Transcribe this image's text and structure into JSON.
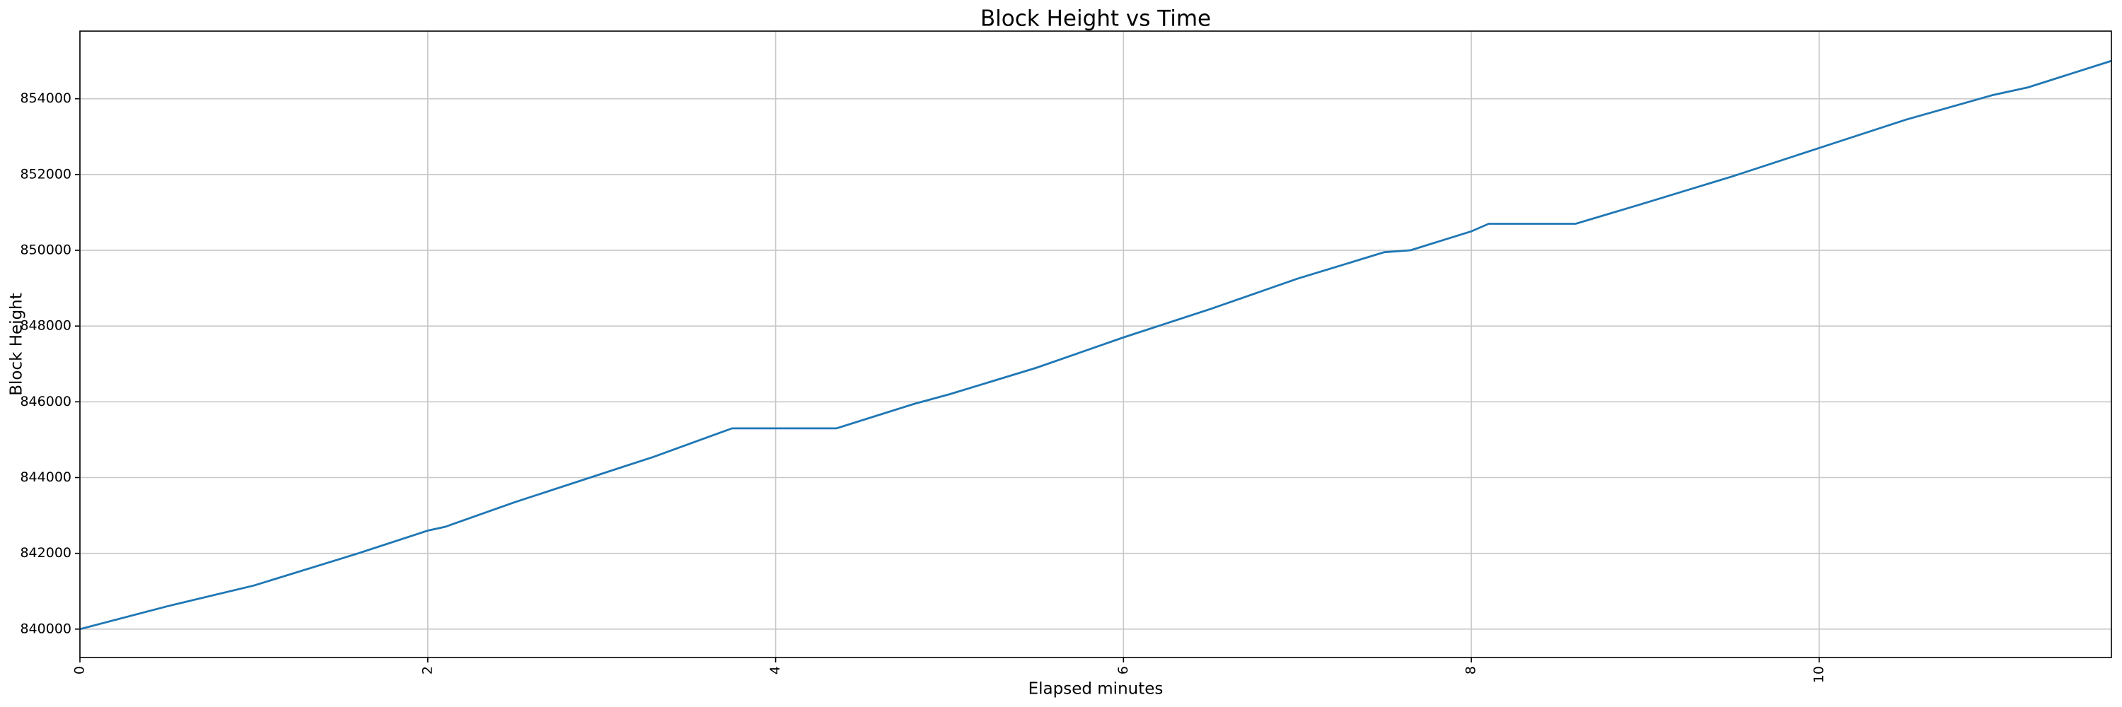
{
  "chart_data": {
    "type": "line",
    "title": "Block Height vs Time",
    "x_label": "Elapsed minutes",
    "y_label": "Block Height",
    "x": [
      0,
      0.5,
      1,
      1.6,
      2.0,
      2.1,
      2.5,
      3.0,
      3.3,
      3.75,
      4.35,
      4.8,
      5.0,
      5.5,
      6.0,
      6.5,
      7.0,
      7.5,
      7.65,
      8.0,
      8.1,
      8.6,
      9.0,
      9.5,
      10.0,
      10.5,
      11.0,
      11.2,
      11.68
    ],
    "series": [
      {
        "color": "#1f77b4",
        "values": [
          840000,
          840600,
          841150,
          842000,
          842600,
          842700,
          843350,
          844100,
          844550,
          845300,
          845300,
          845950,
          846200,
          846900,
          847700,
          848450,
          849250,
          849950,
          850000,
          850500,
          850700,
          850700,
          851250,
          851950,
          852700,
          853450,
          854100,
          854300,
          855000
        ]
      }
    ],
    "xlim": [
      0,
      11.68
    ],
    "ylim": [
      839250,
      855786
    ],
    "xticks": [
      0,
      2,
      4,
      6,
      8,
      10
    ],
    "yticks": [
      840000,
      842000,
      844000,
      846000,
      848000,
      850000,
      852000,
      854000
    ],
    "grid": true
  }
}
